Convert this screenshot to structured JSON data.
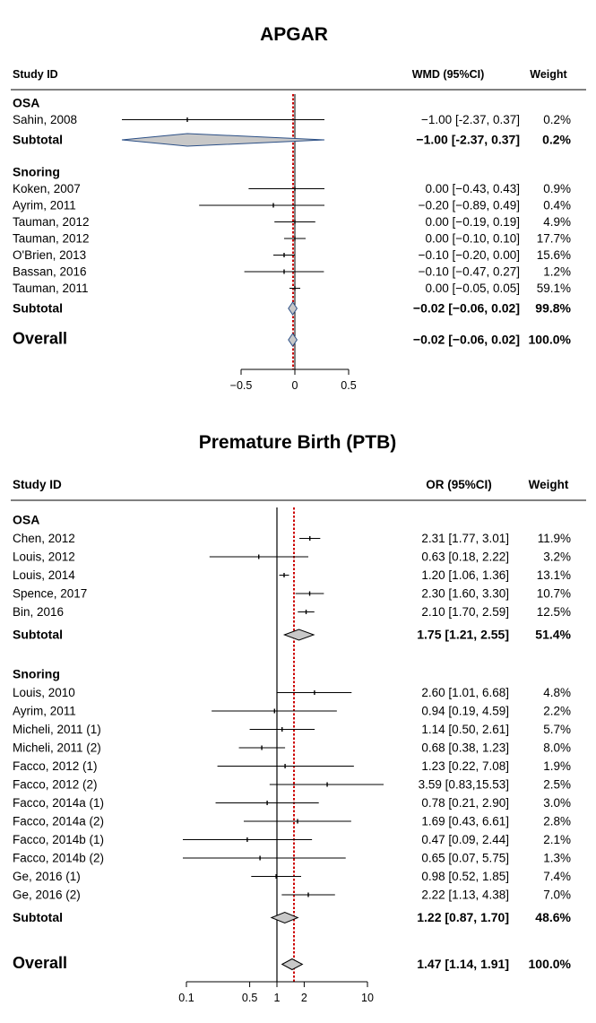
{
  "chart_data": [
    {
      "type": "forest",
      "title": "APGAR",
      "header_study": "Study ID",
      "header_effect": "WMD (95%CI)",
      "header_weight": "Weight",
      "x_ticks": [
        "−0.5",
        "0",
        "0.5"
      ],
      "xlim": [
        -0.5,
        0.5
      ],
      "reference_line": 0,
      "pooled_line": -0.02,
      "groups": [
        {
          "name": "OSA",
          "studies": [
            {
              "label": "Sahin, 2008",
              "est": -1.0,
              "lo": -2.37,
              "hi": 0.37,
              "ci_text": "−1.00  [-2.37, 0.37]",
              "weight": "0.2%"
            }
          ],
          "subtotal": {
            "label": "Subtotal",
            "est": -1.0,
            "lo": -2.37,
            "hi": 0.37,
            "ci_text": "−1.00  [-2.37, 0.37]",
            "weight": "0.2%"
          }
        },
        {
          "name": "Snoring",
          "studies": [
            {
              "label": "Koken, 2007",
              "est": 0.0,
              "lo": -0.43,
              "hi": 0.43,
              "ci_text": "0.00  [−0.43, 0.43]",
              "weight": "0.9%"
            },
            {
              "label": "Ayrim, 2011",
              "est": -0.2,
              "lo": -0.89,
              "hi": 0.49,
              "ci_text": "−0.20  [−0.89, 0.49]",
              "weight": "0.4%"
            },
            {
              "label": "Tauman, 2012",
              "est": 0.0,
              "lo": -0.19,
              "hi": 0.19,
              "ci_text": "0.00  [−0.19, 0.19]",
              "weight": "4.9%"
            },
            {
              "label": "Tauman, 2012",
              "est": 0.0,
              "lo": -0.1,
              "hi": 0.1,
              "ci_text": "0.00  [−0.10, 0.10]",
              "weight": "17.7%"
            },
            {
              "label": "O'Brien, 2013",
              "est": -0.1,
              "lo": -0.2,
              "hi": 0.0,
              "ci_text": "−0.10  [−0.20, 0.00]",
              "weight": "15.6%"
            },
            {
              "label": "Bassan, 2016",
              "est": -0.1,
              "lo": -0.47,
              "hi": 0.27,
              "ci_text": "−0.10  [−0.47, 0.27]",
              "weight": "1.2%"
            },
            {
              "label": "Tauman, 2011",
              "est": 0.0,
              "lo": -0.05,
              "hi": 0.05,
              "ci_text": "0.00  [−0.05, 0.05]",
              "weight": "59.1%"
            }
          ],
          "subtotal": {
            "label": "Subtotal",
            "est": -0.02,
            "lo": -0.06,
            "hi": 0.02,
            "ci_text": "−0.02  [−0.06, 0.02]",
            "weight": "99.8%"
          }
        }
      ],
      "overall": {
        "label": "Overall",
        "est": -0.02,
        "lo": -0.06,
        "hi": 0.02,
        "ci_text": "−0.02  [−0.06, 0.02]",
        "weight": "100.0%"
      }
    },
    {
      "type": "forest",
      "title": "Premature Birth (PTB)",
      "header_study": "Study ID",
      "header_effect": "OR (95%CI)",
      "header_weight": "Weight",
      "scale": "log",
      "x_ticks": [
        "0.1",
        "0.5",
        "1",
        "2",
        "10"
      ],
      "x_tick_values": [
        0.1,
        0.5,
        1,
        2,
        10
      ],
      "xlim": [
        0.1,
        10
      ],
      "reference_line": 1,
      "pooled_line": 1.47,
      "groups": [
        {
          "name": "OSA",
          "studies": [
            {
              "label": "Chen, 2012",
              "est": 2.31,
              "lo": 1.77,
              "hi": 3.01,
              "ci_text": "2.31   [1.77, 3.01]",
              "weight": "11.9%"
            },
            {
              "label": "Louis, 2012",
              "est": 0.63,
              "lo": 0.18,
              "hi": 2.22,
              "ci_text": "0.63   [0.18, 2.22]",
              "weight": "3.2%"
            },
            {
              "label": "Louis, 2014",
              "est": 1.2,
              "lo": 1.06,
              "hi": 1.36,
              "ci_text": "1.20   [1.06, 1.36]",
              "weight": "13.1%"
            },
            {
              "label": "Spence, 2017",
              "est": 2.3,
              "lo": 1.6,
              "hi": 3.3,
              "ci_text": "2.30   [1.60, 3.30]",
              "weight": "10.7%"
            },
            {
              "label": "Bin, 2016",
              "est": 2.1,
              "lo": 1.7,
              "hi": 2.59,
              "ci_text": "2.10   [1.70, 2.59]",
              "weight": "12.5%"
            }
          ],
          "subtotal": {
            "label": "Subtotal",
            "est": 1.75,
            "lo": 1.21,
            "hi": 2.55,
            "ci_text": "1.75   [1.21, 2.55]",
            "weight": "51.4%"
          }
        },
        {
          "name": "Snoring",
          "studies": [
            {
              "label": "Louis, 2010",
              "est": 2.6,
              "lo": 1.01,
              "hi": 6.68,
              "ci_text": "2.60   [1.01, 6.68]",
              "weight": "4.8%"
            },
            {
              "label": "Ayrim, 2011",
              "est": 0.94,
              "lo": 0.19,
              "hi": 4.59,
              "ci_text": "0.94   [0.19, 4.59]",
              "weight": "2.2%"
            },
            {
              "label": "Micheli, 2011 (1)",
              "est": 1.14,
              "lo": 0.5,
              "hi": 2.61,
              "ci_text": "1.14   [0.50, 2.61]",
              "weight": "5.7%"
            },
            {
              "label": "Micheli, 2011 (2)",
              "est": 0.68,
              "lo": 0.38,
              "hi": 1.23,
              "ci_text": "0.68   [0.38, 1.23]",
              "weight": "8.0%"
            },
            {
              "label": "Facco, 2012 (1)",
              "est": 1.23,
              "lo": 0.22,
              "hi": 7.08,
              "ci_text": "1.23   [0.22, 7.08]",
              "weight": "1.9%"
            },
            {
              "label": "Facco, 2012 (2)",
              "est": 3.59,
              "lo": 0.83,
              "hi": 15.53,
              "ci_text": "3.59   [0.83,15.53]",
              "weight": "2.5%"
            },
            {
              "label": "Facco, 2014a (1)",
              "est": 0.78,
              "lo": 0.21,
              "hi": 2.9,
              "ci_text": "0.78   [0.21, 2.90]",
              "weight": "3.0%"
            },
            {
              "label": "Facco, 2014a (2)",
              "est": 1.69,
              "lo": 0.43,
              "hi": 6.61,
              "ci_text": "1.69   [0.43, 6.61]",
              "weight": "2.8%"
            },
            {
              "label": "Facco, 2014b (1)",
              "est": 0.47,
              "lo": 0.09,
              "hi": 2.44,
              "ci_text": "0.47   [0.09, 2.44]",
              "weight": "2.1%"
            },
            {
              "label": "Facco, 2014b (2)",
              "est": 0.65,
              "lo": 0.07,
              "hi": 5.75,
              "ci_text": "0.65   [0.07, 5.75]",
              "weight": "1.3%"
            },
            {
              "label": "Ge, 2016 (1)",
              "est": 0.98,
              "lo": 0.52,
              "hi": 1.85,
              "ci_text": "0.98   [0.52, 1.85]",
              "weight": "7.4%"
            },
            {
              "label": "Ge, 2016 (2)",
              "est": 2.22,
              "lo": 1.13,
              "hi": 4.38,
              "ci_text": "2.22   [1.13, 4.38]",
              "weight": "7.0%"
            }
          ],
          "subtotal": {
            "label": "Subtotal",
            "est": 1.22,
            "lo": 0.87,
            "hi": 1.7,
            "ci_text": "1.22   [0.87, 1.70]",
            "weight": "48.6%"
          }
        }
      ],
      "overall": {
        "label": "Overall",
        "est": 1.47,
        "lo": 1.14,
        "hi": 1.91,
        "ci_text": "1.47   [1.14, 1.91]",
        "weight": "100.0%"
      }
    }
  ],
  "colors": {
    "diamond_fill": "#c8c8c8",
    "apgar_diamond_stroke": "#2b4f86",
    "pooled_line": "#cc0000",
    "ink": "#000000"
  }
}
